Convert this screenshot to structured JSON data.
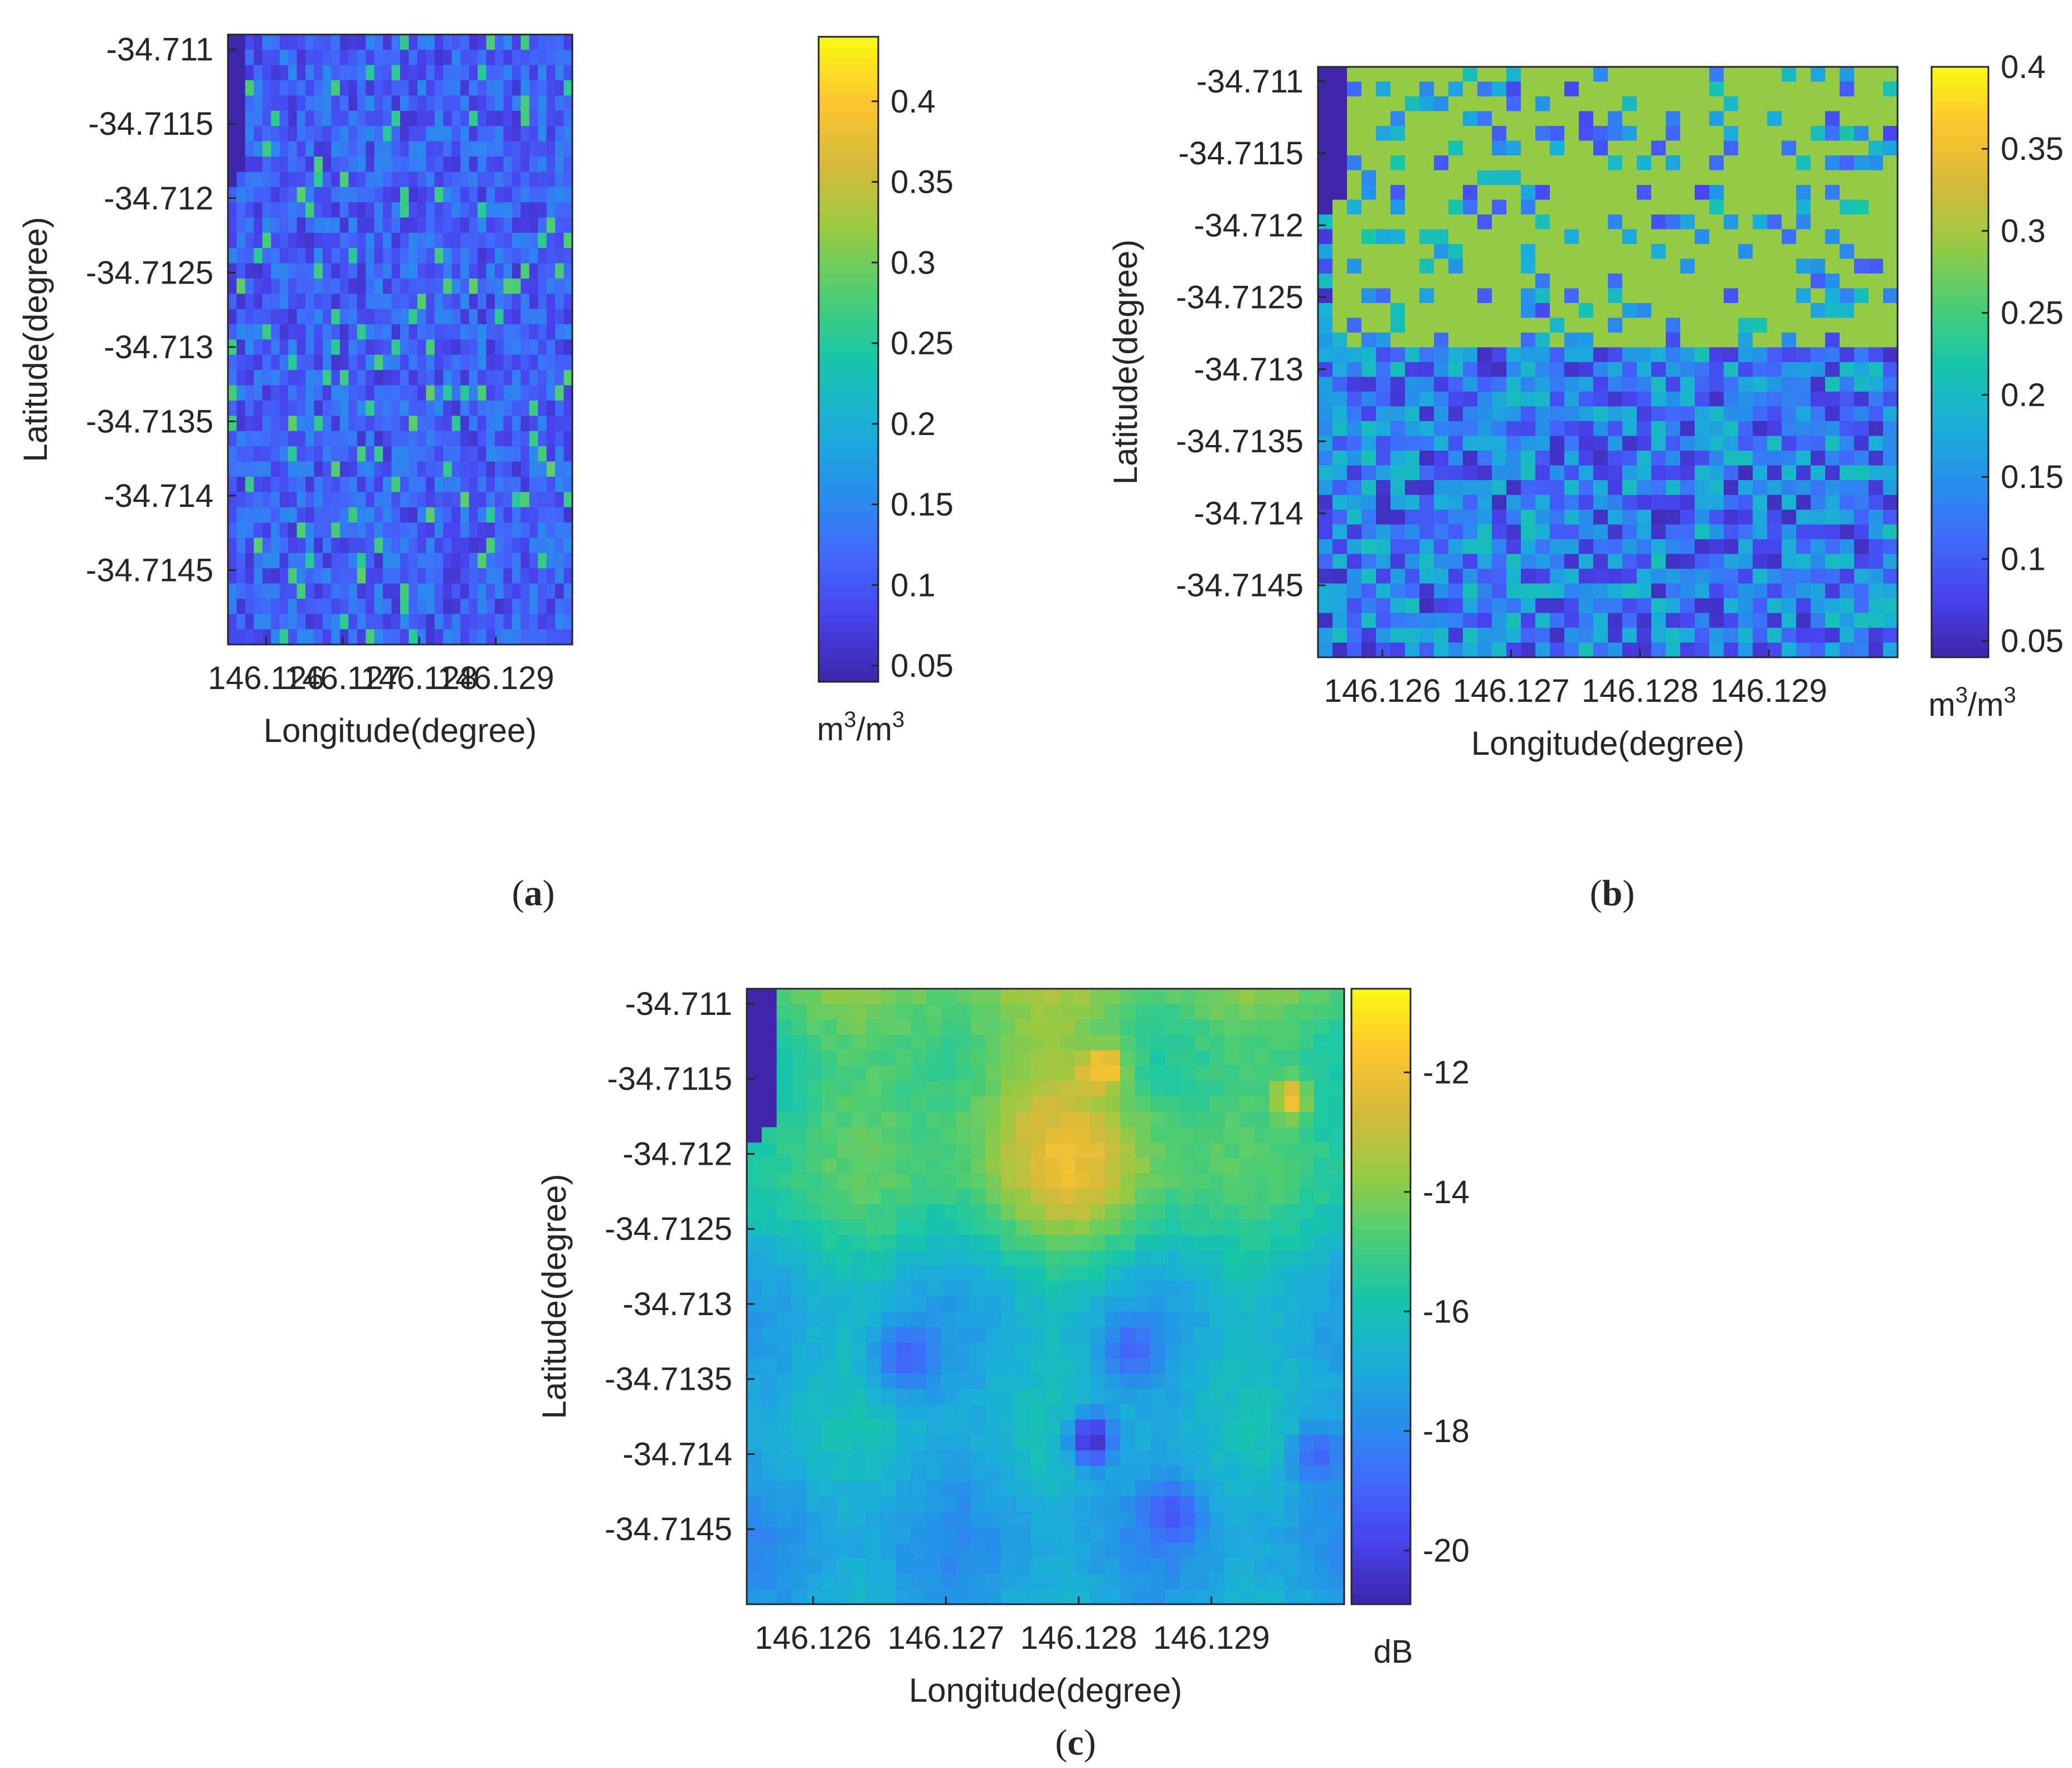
{
  "figure": {
    "panels": [
      {
        "id": "a",
        "tag_open": "(",
        "tag_letter": "a",
        "tag_close": ")"
      },
      {
        "id": "b",
        "tag_open": "(",
        "tag_letter": "b",
        "tag_close": ")"
      },
      {
        "id": "c",
        "tag_open": "(",
        "tag_letter": "c",
        "tag_close": ")"
      }
    ]
  },
  "chart_data": [
    {
      "panel": "a",
      "type": "heatmap",
      "xlabel": "Longitude(degree)",
      "ylabel": "Latitude(degree)",
      "xlim": [
        146.1255,
        146.13
      ],
      "ylim": [
        -34.715,
        -34.7109
      ],
      "xticks": [
        146.126,
        146.127,
        146.128,
        146.129
      ],
      "xtick_labels": [
        "146.126",
        "146.127",
        "146.128",
        "146.129"
      ],
      "yticks": [
        -34.711,
        -34.7115,
        -34.712,
        -34.7125,
        -34.713,
        -34.7135,
        -34.714,
        -34.7145
      ],
      "ytick_labels": [
        "-34.711",
        "-34.7115",
        "-34.712",
        "-34.7125",
        "-34.713",
        "-34.7135",
        "-34.714",
        "-34.7145"
      ],
      "grid": false,
      "colormap": "parula",
      "colorbar": {
        "min": 0.04,
        "max": 0.44,
        "ticks": [
          0.05,
          0.1,
          0.15,
          0.2,
          0.25,
          0.3,
          0.35,
          0.4
        ],
        "tick_labels": [
          "0.05",
          "0.1",
          "0.15",
          "0.2",
          "0.25",
          "0.3",
          "0.35",
          "0.4"
        ],
        "unit": {
          "base1": "m",
          "sup1": "3",
          "slash": "/",
          "base2": "m",
          "sup2": "3"
        }
      },
      "grid_size": [
        40,
        40
      ],
      "description_values": "random pixel field, values mostly 0.06-0.18 with scattered pixels near 0.25-0.3; masked (lowest) corner at top-left",
      "field": {
        "model": "noise",
        "seed": 11,
        "base": 0.09,
        "spread": 0.09,
        "spike_prob": 0.06,
        "spike_value": 0.27,
        "corner_mask": true
      }
    },
    {
      "panel": "b",
      "type": "heatmap",
      "xlabel": "Longitude(degree)",
      "ylabel": "Latitude(degree)",
      "xlim": [
        146.1255,
        146.13
      ],
      "ylim": [
        -34.715,
        -34.7109
      ],
      "xticks": [
        146.126,
        146.127,
        146.128,
        146.129
      ],
      "xtick_labels": [
        "146.126",
        "146.127",
        "146.128",
        "146.129"
      ],
      "yticks": [
        -34.711,
        -34.7115,
        -34.712,
        -34.7125,
        -34.713,
        -34.7135,
        -34.714,
        -34.7145
      ],
      "ytick_labels": [
        "-34.711",
        "-34.7115",
        "-34.712",
        "-34.7125",
        "-34.713",
        "-34.7135",
        "-34.714",
        "-34.7145"
      ],
      "grid": false,
      "colormap": "parula",
      "colorbar": {
        "min": 0.04,
        "max": 0.4,
        "ticks": [
          0.05,
          0.1,
          0.15,
          0.2,
          0.25,
          0.3,
          0.35,
          0.4
        ],
        "tick_labels": [
          "0.05",
          "0.1",
          "0.15",
          "0.2",
          "0.25",
          "0.3",
          "0.35",
          "0.4"
        ],
        "unit": {
          "base1": "m",
          "sup1": "3",
          "slash": "/",
          "base2": "m",
          "sup2": "3"
        }
      },
      "grid_size": [
        40,
        40
      ],
      "description_values": "upper half (lat > -34.7128) mostly saturated near 0.29 with scattered low pixels; lower half 0.08-0.2 noisy; masked corner at top-left",
      "field": {
        "model": "two_zone",
        "seed": 23,
        "split_lat": -34.71285,
        "upper_value": 0.29,
        "upper_noise_prob": 0.22,
        "lower_base": 0.13,
        "lower_spread": 0.08,
        "corner_mask": true
      }
    },
    {
      "panel": "c",
      "type": "heatmap",
      "xlabel": "Longitude(degree)",
      "ylabel": "Latitude(degree)",
      "xlim": [
        146.1255,
        146.13
      ],
      "ylim": [
        -34.715,
        -34.7109
      ],
      "xticks": [
        146.126,
        146.127,
        146.128,
        146.129
      ],
      "xtick_labels": [
        "146.126",
        "146.127",
        "146.128",
        "146.129"
      ],
      "yticks": [
        -34.711,
        -34.7115,
        -34.712,
        -34.7125,
        -34.713,
        -34.7135,
        -34.714,
        -34.7145
      ],
      "ytick_labels": [
        "-34.711",
        "-34.7115",
        "-34.712",
        "-34.7125",
        "-34.713",
        "-34.7135",
        "-34.714",
        "-34.7145"
      ],
      "grid": false,
      "colormap": "parula",
      "colorbar": {
        "min": -20.9,
        "max": -10.6,
        "ticks": [
          -12,
          -14,
          -16,
          -18,
          -20
        ],
        "tick_labels": [
          "-12",
          "-14",
          "-16",
          "-18",
          "-20"
        ],
        "unit": {
          "text": "dB"
        }
      },
      "grid_size": [
        40,
        40
      ],
      "description_values": "smooth backscatter field around -17 dB, greener (-14 to -15 dB) in upper-middle, bright spots near -11 dB at (146.1281,-34.7114) and (146.1296,-34.7116), dark spot near -20.5 dB at (146.1281,-34.7139); masked corner at top-left",
      "field": {
        "model": "smooth",
        "seed": 5,
        "base": -17.0,
        "north_gain": 2.6,
        "bumps": [
          {
            "x": 146.1281,
            "y": -34.7121,
            "amp": 2.0,
            "r": 0.0006
          },
          {
            "x": 146.1275,
            "y": -34.7117,
            "amp": 1.2,
            "r": 0.0008
          }
        ],
        "spots": [
          {
            "x": 146.1282,
            "y": -34.71142,
            "value": -10.8,
            "r": 0.00012
          },
          {
            "x": 146.1281,
            "y": -34.71148,
            "value": -12.0,
            "r": 0.00012
          },
          {
            "x": 146.1296,
            "y": -34.71163,
            "value": -11.6,
            "r": 0.00012
          },
          {
            "x": 146.1281,
            "y": -34.7139,
            "value": -20.6,
            "r": 0.00018
          },
          {
            "x": 146.1267,
            "y": -34.71335,
            "value": -19.0,
            "r": 0.00025
          },
          {
            "x": 146.1284,
            "y": -34.7133,
            "value": -19.0,
            "r": 0.00022
          },
          {
            "x": 146.1287,
            "y": -34.7144,
            "value": -19.4,
            "r": 0.0002
          },
          {
            "x": 146.1298,
            "y": -34.714,
            "value": -19.0,
            "r": 0.0002
          }
        ],
        "corner_mask": true
      }
    }
  ]
}
